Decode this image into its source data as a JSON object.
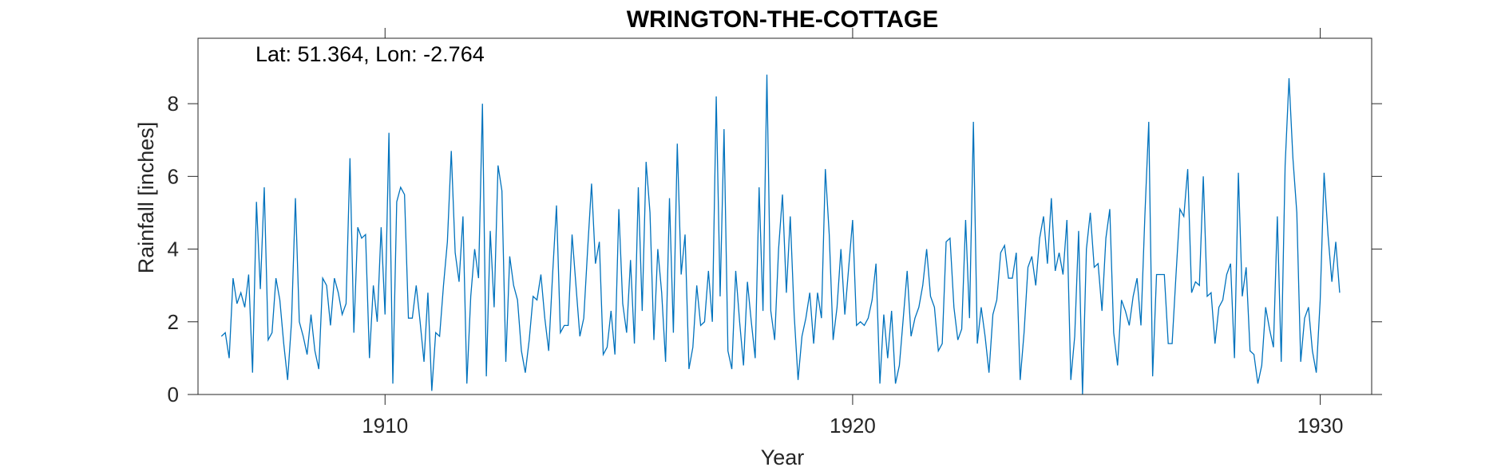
{
  "chart_data": {
    "type": "line",
    "title": "WRINGTON-THE-COTTAGE",
    "annotation": "Lat: 51.364, Lon: -2.764",
    "xlabel": "Year",
    "ylabel": "Rainfall [inches]",
    "xlim": [
      1906.0,
      1931.1
    ],
    "ylim": [
      0,
      9.8
    ],
    "xticks": [
      1910,
      1920,
      1930
    ],
    "yticks": [
      0,
      2,
      4,
      6,
      8
    ],
    "grid": false,
    "line_color": "#0072BD",
    "series": [
      {
        "x_start": 1906.5,
        "x_step": 0.08333,
        "values": [
          1.6,
          1.7,
          1.0,
          3.2,
          2.5,
          2.8,
          2.4,
          3.3,
          0.6,
          5.3,
          2.9,
          5.7,
          1.5,
          1.7,
          3.2,
          2.6,
          1.4,
          0.4,
          2.0,
          5.4,
          2.0,
          1.6,
          1.1,
          2.2,
          1.2,
          0.7,
          3.2,
          3.0,
          1.9,
          3.2,
          2.8,
          2.2,
          2.5,
          6.5,
          1.7,
          4.6,
          4.3,
          4.4,
          1.0,
          3.0,
          2.0,
          4.6,
          2.2,
          7.2,
          0.3,
          5.3,
          5.7,
          5.5,
          2.1,
          2.1,
          3.0,
          2.0,
          0.9,
          2.8,
          0.1,
          1.7,
          1.6,
          3.0,
          4.2,
          6.7,
          3.9,
          3.1,
          4.9,
          0.3,
          2.7,
          4.0,
          3.2,
          8.0,
          0.5,
          4.5,
          2.4,
          6.3,
          5.6,
          0.9,
          3.8,
          3.0,
          2.6,
          1.2,
          0.6,
          1.5,
          2.7,
          2.6,
          3.3,
          2.1,
          1.2,
          3.3,
          5.2,
          1.7,
          1.9,
          1.9,
          4.4,
          3.0,
          1.6,
          2.1,
          4.0,
          5.8,
          3.6,
          4.2,
          1.1,
          1.3,
          2.3,
          1.1,
          5.1,
          2.5,
          1.7,
          3.7,
          1.4,
          5.7,
          2.3,
          6.4,
          5.0,
          1.5,
          4.0,
          2.8,
          0.9,
          5.4,
          1.7,
          6.9,
          3.3,
          4.4,
          0.7,
          1.3,
          3.0,
          1.9,
          2.0,
          3.4,
          2.0,
          8.2,
          2.7,
          7.3,
          1.2,
          0.7,
          3.4,
          2.0,
          0.8,
          3.1,
          2.0,
          1.0,
          5.7,
          2.3,
          8.8,
          2.3,
          1.5,
          4.0,
          5.5,
          2.8,
          4.9,
          2.2,
          0.4,
          1.6,
          2.1,
          2.8,
          1.4,
          2.8,
          2.1,
          6.2,
          4.4,
          1.5,
          2.4,
          4.0,
          2.2,
          3.5,
          4.8,
          1.9,
          2.0,
          1.9,
          2.1,
          2.6,
          3.6,
          0.3,
          2.2,
          1.0,
          2.3,
          0.3,
          0.8,
          2.1,
          3.4,
          1.6,
          2.1,
          2.4,
          3.0,
          4.0,
          2.7,
          2.4,
          1.2,
          1.4,
          4.2,
          4.3,
          2.4,
          1.5,
          1.8,
          4.8,
          2.1,
          7.5,
          1.4,
          2.4,
          1.6,
          0.6,
          2.2,
          2.6,
          3.9,
          4.1,
          3.2,
          3.2,
          3.9,
          0.4,
          1.7,
          3.5,
          3.8,
          3.0,
          4.3,
          4.9,
          3.6,
          5.4,
          3.4,
          3.9,
          3.3,
          4.8,
          0.4,
          1.6,
          4.5,
          0.0,
          4.0,
          5.0,
          3.5,
          3.6,
          2.3,
          4.3,
          5.1,
          1.7,
          0.8,
          2.6,
          2.3,
          1.9,
          2.7,
          3.2,
          1.9,
          4.9,
          7.5,
          0.5,
          3.3,
          3.3,
          3.3,
          1.4,
          1.4,
          3.3,
          5.1,
          4.9,
          6.2,
          2.8,
          3.1,
          3.0,
          6.0,
          2.7,
          2.8,
          1.4,
          2.4,
          2.6,
          3.3,
          3.6,
          1.0,
          6.1,
          2.7,
          3.5,
          1.2,
          1.1,
          0.3,
          0.8,
          2.4,
          1.8,
          1.3,
          4.9,
          0.9,
          6.3,
          8.7,
          6.5,
          5.0,
          0.9,
          2.1,
          2.4,
          1.2,
          0.6,
          2.6,
          6.1,
          4.4,
          3.1,
          4.2,
          2.8
        ]
      }
    ]
  }
}
